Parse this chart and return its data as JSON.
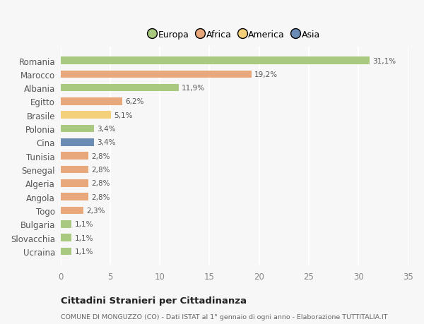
{
  "countries": [
    "Romania",
    "Marocco",
    "Albania",
    "Egitto",
    "Brasile",
    "Polonia",
    "Cina",
    "Tunisia",
    "Senegal",
    "Algeria",
    "Angola",
    "Togo",
    "Bulgaria",
    "Slovacchia",
    "Ucraina"
  ],
  "values": [
    31.1,
    19.2,
    11.9,
    6.2,
    5.1,
    3.4,
    3.4,
    2.8,
    2.8,
    2.8,
    2.8,
    2.3,
    1.1,
    1.1,
    1.1
  ],
  "labels": [
    "31,1%",
    "19,2%",
    "11,9%",
    "6,2%",
    "5,1%",
    "3,4%",
    "3,4%",
    "2,8%",
    "2,8%",
    "2,8%",
    "2,8%",
    "2,3%",
    "1,1%",
    "1,1%",
    "1,1%"
  ],
  "colors": [
    "#a8c97f",
    "#e8a87c",
    "#a8c97f",
    "#e8a87c",
    "#f5d07a",
    "#a8c97f",
    "#6b8db5",
    "#e8a87c",
    "#e8a87c",
    "#e8a87c",
    "#e8a87c",
    "#e8a87c",
    "#a8c97f",
    "#a8c97f",
    "#a8c97f"
  ],
  "continent_legend": [
    "Europa",
    "Africa",
    "America",
    "Asia"
  ],
  "legend_colors": [
    "#a8c97f",
    "#e8a87c",
    "#f5d07a",
    "#6b8db5"
  ],
  "title": "Cittadini Stranieri per Cittadinanza",
  "subtitle": "COMUNE DI MONGUZZO (CO) - Dati ISTAT al 1° gennaio di ogni anno - Elaborazione TUTTITALIA.IT",
  "xlim": [
    0,
    35
  ],
  "xticks": [
    0,
    5,
    10,
    15,
    20,
    25,
    30,
    35
  ],
  "background_color": "#f7f7f7",
  "grid_color": "#ffffff",
  "bar_height": 0.55
}
